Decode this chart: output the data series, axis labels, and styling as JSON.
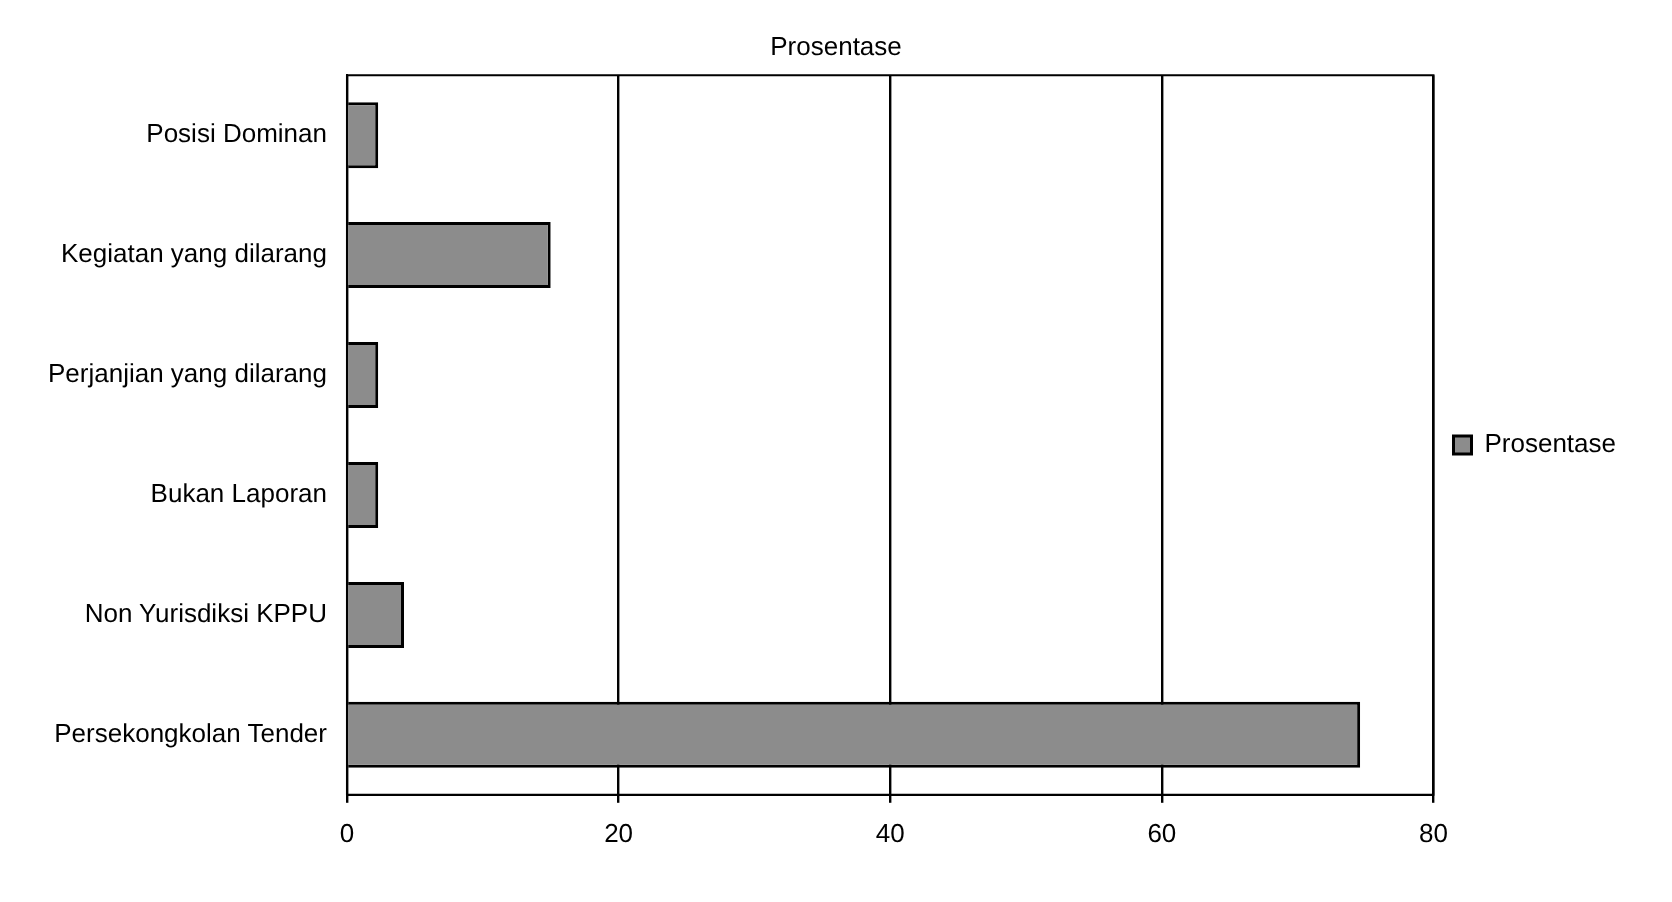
{
  "chart_data": {
    "type": "bar",
    "orientation": "horizontal",
    "title": "Prosentase",
    "categories": [
      "Posisi Dominan",
      "Kegiatan yang dilarang",
      "Perjanjian yang dilarang",
      "Bukan Laporan",
      "Non Yurisdiksi KPPU",
      "Persekongkolan Tender"
    ],
    "series": [
      {
        "name": "Prosentase",
        "color": "#8c8c8c",
        "values": [
          2.3,
          15,
          2.3,
          2.3,
          4.2,
          74.6
        ]
      }
    ],
    "xlim": [
      0,
      80
    ],
    "xticks": [
      0,
      20,
      40,
      60,
      80
    ],
    "grid": "x",
    "legend": "right"
  }
}
